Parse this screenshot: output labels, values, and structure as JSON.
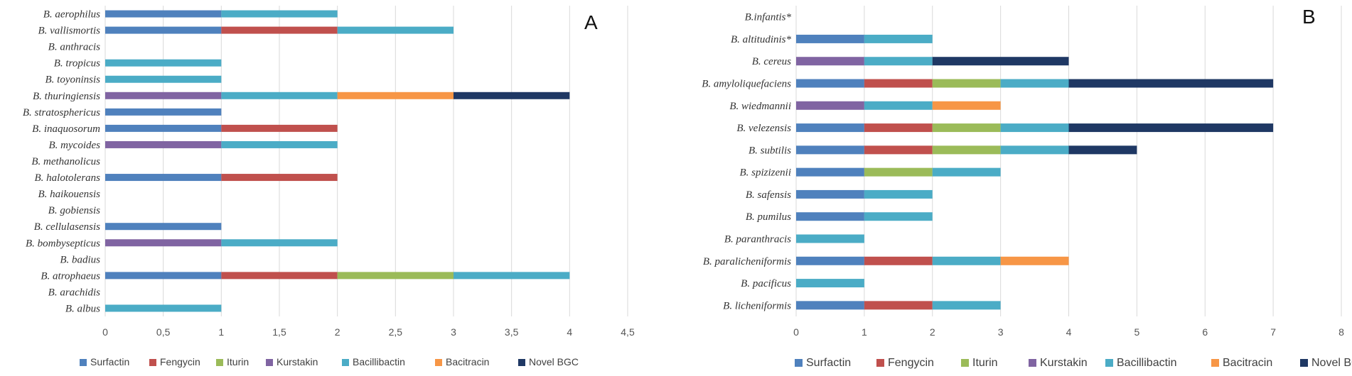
{
  "colors": {
    "Surfactin": "#4f81bd",
    "Fengycin": "#c0504d",
    "Iturin": "#9bbb59",
    "Kurstakin": "#8064a2",
    "Bacillibactin": "#4bacc6",
    "Bacitracin": "#f79646",
    "Novel BGC": "#1f3864",
    "Novel BCG": "#1f3864"
  },
  "chart_data": [
    {
      "type": "bar",
      "orientation": "horizontal",
      "stacked": true,
      "panel": "A",
      "categories": [
        "B. aerophilus",
        "B. vallismortis",
        "B. anthracis",
        "B. tropicus",
        "B. toyoninsis",
        "B. thuringiensis",
        "B. stratosphericus",
        "B. inaquosorum",
        "B. mycoides",
        "B. methanolicus",
        "B. halotolerans",
        "B. haikouensis",
        "B. gobiensis",
        "B. cellulasensis",
        "B. bombysepticus",
        "B. badius",
        "B. atrophaeus",
        "B. arachidis",
        "B. albus"
      ],
      "series": [
        {
          "name": "Surfactin",
          "values": [
            1,
            1,
            0,
            0,
            0,
            0,
            1,
            1,
            0,
            0,
            1,
            0,
            0,
            1,
            0,
            0,
            1,
            0,
            0
          ]
        },
        {
          "name": "Fengycin",
          "values": [
            0,
            1,
            0,
            0,
            0,
            0,
            0,
            1,
            0,
            0,
            1,
            0,
            0,
            0,
            0,
            0,
            1,
            0,
            0
          ]
        },
        {
          "name": "Iturin",
          "values": [
            0,
            0,
            0,
            0,
            0,
            0,
            0,
            0,
            0,
            0,
            0,
            0,
            0,
            0,
            0,
            0,
            1,
            0,
            0
          ]
        },
        {
          "name": "Kurstakin",
          "values": [
            0,
            0,
            0,
            0,
            0,
            1,
            0,
            0,
            1,
            0,
            0,
            0,
            0,
            0,
            1,
            0,
            0,
            0,
            0
          ]
        },
        {
          "name": "Bacillibactin",
          "values": [
            1,
            1,
            0,
            1,
            1,
            1,
            0,
            0,
            1,
            0,
            0,
            0,
            0,
            0,
            1,
            0,
            1,
            0,
            1
          ]
        },
        {
          "name": "Bacitracin",
          "values": [
            0,
            0,
            0,
            0,
            0,
            1,
            0,
            0,
            0,
            0,
            0,
            0,
            0,
            0,
            0,
            0,
            0,
            0,
            0
          ]
        },
        {
          "name": "Novel BGC",
          "values": [
            0,
            0,
            0,
            0,
            0,
            1,
            0,
            0,
            0,
            0,
            0,
            0,
            0,
            0,
            0,
            0,
            0,
            0,
            0
          ]
        }
      ],
      "xlim": [
        0,
        4.5
      ],
      "xticks": [
        "0",
        "0,5",
        "1",
        "1,5",
        "2",
        "2,5",
        "3",
        "3,5",
        "4",
        "4,5"
      ],
      "grid": true,
      "legend": "bottom"
    },
    {
      "type": "bar",
      "orientation": "horizontal",
      "stacked": true,
      "panel": "B",
      "categories": [
        "B.infantis*",
        "B. altitudinis*",
        "B. cereus",
        "B. amyloliquefaciens",
        "B. wiedmannii",
        "B. velezensis",
        "B. subtilis",
        "B. spizizenii",
        "B. safensis",
        "B. pumilus",
        "B. paranthracis",
        "B. paralicheniformis",
        "B. pacificus",
        "B. licheniformis"
      ],
      "series": [
        {
          "name": "Surfactin",
          "values": [
            0,
            1,
            0,
            1,
            0,
            1,
            1,
            1,
            1,
            1,
            0,
            1,
            0,
            1
          ]
        },
        {
          "name": "Fengycin",
          "values": [
            0,
            0,
            0,
            1,
            0,
            1,
            1,
            0,
            0,
            0,
            0,
            1,
            0,
            1
          ]
        },
        {
          "name": "Iturin",
          "values": [
            0,
            0,
            0,
            1,
            0,
            1,
            1,
            1,
            0,
            0,
            0,
            0,
            0,
            0
          ]
        },
        {
          "name": "Kurstakin",
          "values": [
            0,
            0,
            1,
            0,
            1,
            0,
            0,
            0,
            0,
            0,
            0,
            0,
            0,
            0
          ]
        },
        {
          "name": "Bacillibactin",
          "values": [
            0,
            1,
            1,
            1,
            1,
            1,
            1,
            1,
            1,
            1,
            1,
            1,
            1,
            1
          ]
        },
        {
          "name": "Bacitracin",
          "values": [
            0,
            0,
            0,
            0,
            1,
            0,
            0,
            0,
            0,
            0,
            0,
            1,
            0,
            0
          ]
        },
        {
          "name": "Novel BCG",
          "values": [
            0,
            0,
            2,
            3,
            0,
            3,
            1,
            0,
            0,
            0,
            0,
            0,
            0,
            0
          ]
        }
      ],
      "xlim": [
        0,
        8
      ],
      "xticks": [
        "0",
        "1",
        "2",
        "3",
        "4",
        "5",
        "6",
        "7",
        "8"
      ],
      "grid": true,
      "legend": "bottom"
    }
  ]
}
